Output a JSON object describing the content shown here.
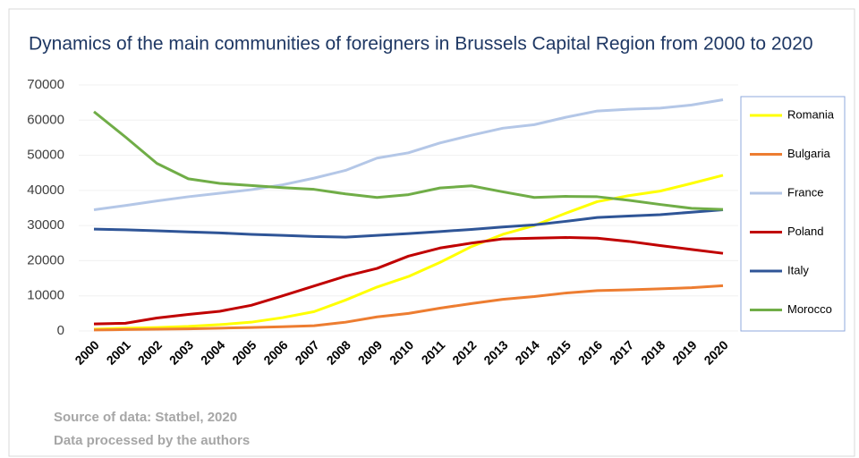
{
  "chart_data": {
    "type": "line",
    "title": "Dynamics of the main communities of foreigners in Brussels Capital Region from 2000 to 2020",
    "notes": [
      "Source of data: Statbel, 2020",
      "Data processed by the authors"
    ],
    "categories": [
      "2000",
      "2001",
      "2002",
      "2003",
      "2004",
      "2005",
      "2006",
      "2007",
      "2008",
      "2009",
      "2010",
      "2011",
      "2012",
      "2013",
      "2014",
      "2015",
      "2016",
      "2017",
      "2018",
      "2019",
      "2020"
    ],
    "series": [
      {
        "name": "Romania",
        "color": "#ffff00",
        "values": [
          500,
          800,
          1000,
          1300,
          1800,
          2500,
          3800,
          5500,
          8800,
          12500,
          15500,
          19500,
          24000,
          27500,
          30000,
          33500,
          36800,
          38500,
          39800,
          42000,
          44300
        ]
      },
      {
        "name": "Bulgaria",
        "color": "#ed7d31",
        "values": [
          300,
          400,
          500,
          600,
          800,
          1000,
          1200,
          1500,
          2500,
          4000,
          5000,
          6500,
          7800,
          9000,
          9800,
          10800,
          11500,
          11700,
          12000,
          12300,
          12900
        ]
      },
      {
        "name": "France",
        "color": "#b4c7e7",
        "values": [
          34500,
          35700,
          37000,
          38200,
          39200,
          40200,
          41600,
          43500,
          45700,
          49200,
          50700,
          53500,
          55700,
          57700,
          58700,
          60800,
          62600,
          63100,
          63400,
          64300,
          65800
        ]
      },
      {
        "name": "Poland",
        "color": "#c00000",
        "values": [
          2000,
          2200,
          3700,
          4700,
          5600,
          7300,
          10000,
          12800,
          15600,
          17800,
          21300,
          23600,
          25000,
          26200,
          26400,
          26600,
          26400,
          25500,
          24300,
          23200,
          22100
        ]
      },
      {
        "name": "Italy",
        "color": "#2f5597",
        "values": [
          29000,
          28800,
          28500,
          28200,
          27900,
          27500,
          27200,
          26900,
          26700,
          27200,
          27700,
          28300,
          28900,
          29600,
          30200,
          31200,
          32300,
          32700,
          33100,
          33800,
          34500
        ]
      },
      {
        "name": "Morocco",
        "color": "#70ad47",
        "values": [
          62400,
          55200,
          47700,
          43300,
          42000,
          41400,
          40800,
          40300,
          39000,
          38000,
          38800,
          40700,
          41300,
          39600,
          38000,
          38300,
          38200,
          37200,
          36000,
          34900,
          34600
        ]
      }
    ],
    "ylim": [
      0,
      70000
    ],
    "yticks": [
      0,
      10000,
      20000,
      30000,
      40000,
      50000,
      60000,
      70000
    ],
    "grid": true,
    "legend": "right"
  }
}
